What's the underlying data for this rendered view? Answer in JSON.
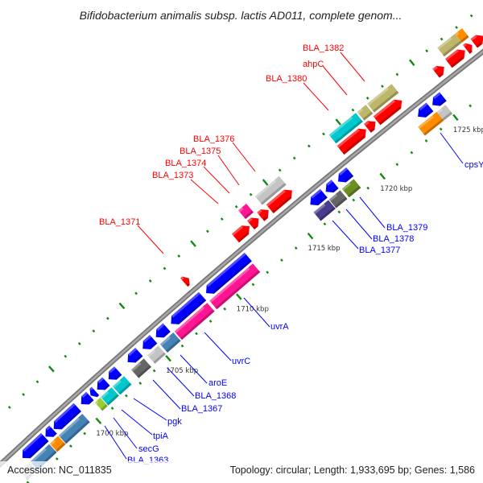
{
  "title": "Bifidobacterium animalis subsp. lactis AD011, complete genom...",
  "footer": {
    "accession": "Accession: NC_011835",
    "summary": "Topology: circular; Length: 1,933,695 bp; Genes: 1,586"
  },
  "colors": {
    "backbone": "#8c8c8c",
    "tick": "#138a13",
    "forward_label": "#ff0000",
    "reverse_label": "#0000ff",
    "red": "#ff0000",
    "blue": "#0000ff",
    "khaki": "#bdb76b",
    "cyan": "#00c8cc",
    "lightgray": "#c4c4c4",
    "pink": "#ff1493",
    "slate": "#483d8b",
    "dimgray": "#666666",
    "olive": "#6b8e23",
    "orange": "#ff8c00",
    "steelblue": "#4682b4",
    "yellowgreen": "#9acd32"
  },
  "scale_labels": [
    "1700 kbp",
    "1705 kbp",
    "1710 kbp",
    "1715 kbp",
    "1720 kbp",
    "1725 kbp"
  ],
  "gene_labels": [
    {
      "text": "BLA_1382",
      "strand": "forward"
    },
    {
      "text": "ahpC",
      "strand": "forward"
    },
    {
      "text": "BLA_1380",
      "strand": "forward"
    },
    {
      "text": "BLA_1376",
      "strand": "forward"
    },
    {
      "text": "BLA_1375",
      "strand": "forward"
    },
    {
      "text": "BLA_1374",
      "strand": "forward"
    },
    {
      "text": "BLA_1373",
      "strand": "forward"
    },
    {
      "text": "BLA_1371",
      "strand": "forward"
    },
    {
      "text": "BLA_1379",
      "strand": "reverse"
    },
    {
      "text": "BLA_1378",
      "strand": "reverse"
    },
    {
      "text": "BLA_1377",
      "strand": "reverse"
    },
    {
      "text": "cpsY",
      "strand": "reverse"
    },
    {
      "text": "uvrA",
      "strand": "reverse"
    },
    {
      "text": "uvrC",
      "strand": "reverse"
    },
    {
      "text": "aroE",
      "strand": "reverse"
    },
    {
      "text": "BLA_1368",
      "strand": "reverse"
    },
    {
      "text": "BLA_1367",
      "strand": "reverse"
    },
    {
      "text": "pgk",
      "strand": "reverse"
    },
    {
      "text": "tpiA",
      "strand": "reverse"
    },
    {
      "text": "secG",
      "strand": "reverse"
    },
    {
      "text": "BLA_1363",
      "strand": "reverse"
    }
  ]
}
